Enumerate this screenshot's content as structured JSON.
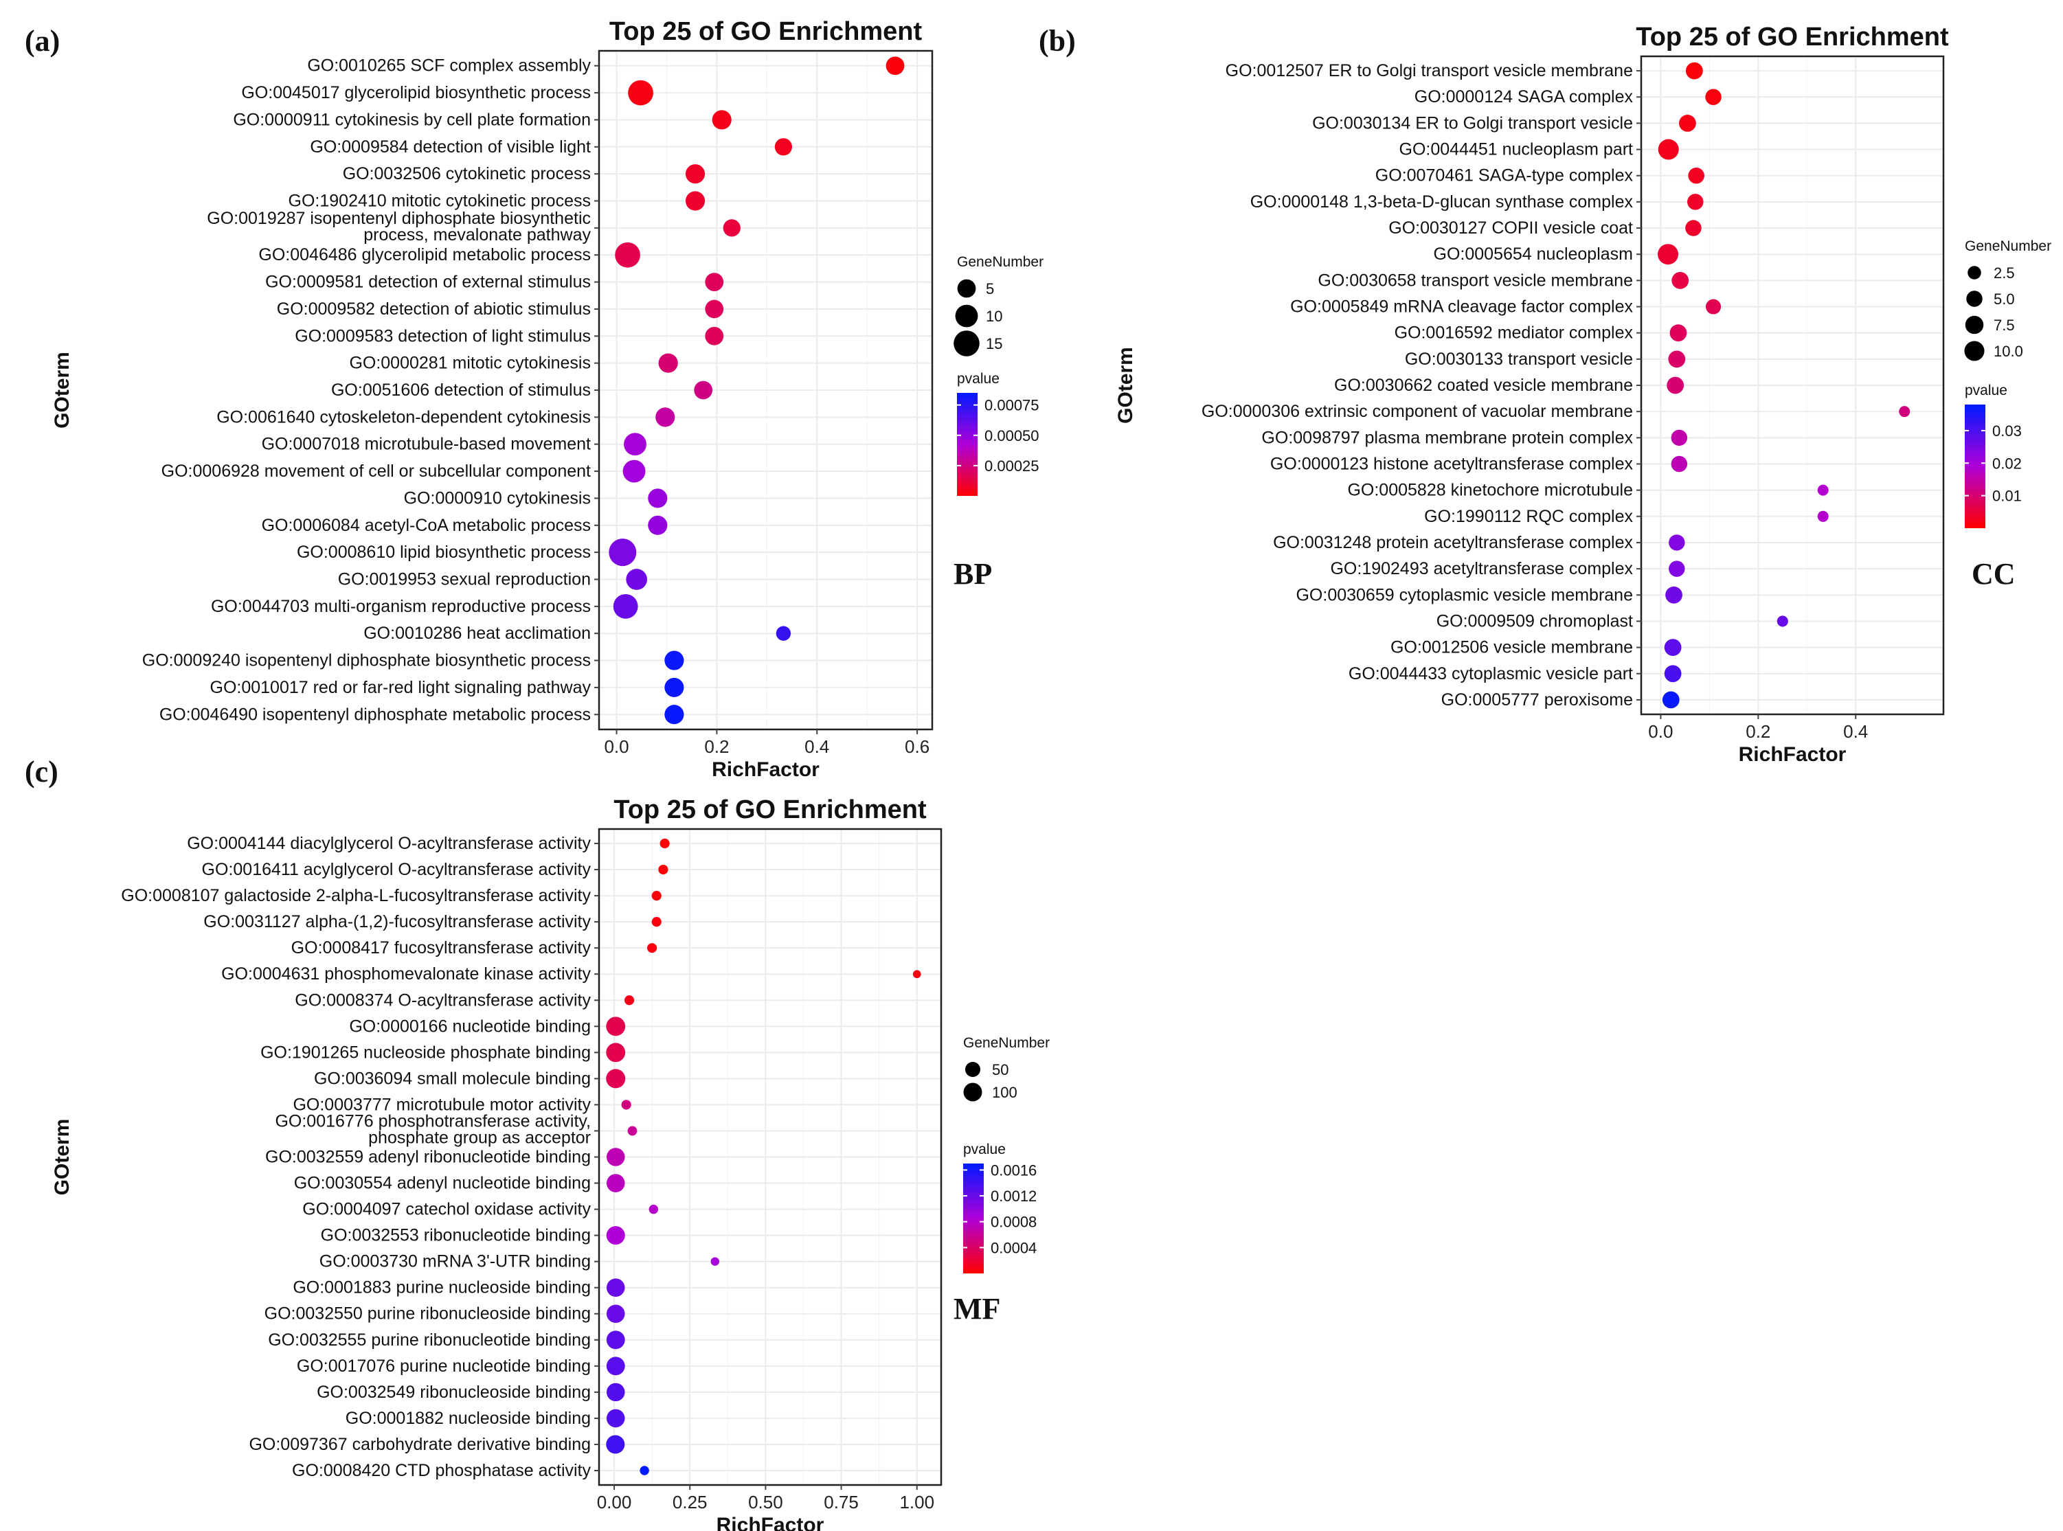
{
  "figure": {
    "description_hidden": ""
  },
  "chart_data": [
    {
      "type": "scatter",
      "panel_letter": "(a)",
      "ontology": "BP",
      "title": "Top 25 of GO Enrichment",
      "xlabel": "RichFactor",
      "ylabel": "GOterm",
      "xlim": [
        -0.035,
        0.63
      ],
      "xticks": [
        0.0,
        0.2,
        0.4,
        0.6
      ],
      "xtick_labels": [
        "0.0",
        "0.2",
        "0.4",
        "0.6"
      ],
      "size_legend": {
        "title": "GeneNumber",
        "values": [
          5,
          10,
          15
        ],
        "labels": [
          "5",
          "10",
          "15"
        ]
      },
      "color_legend": {
        "title": "pvalue",
        "min": 0.0,
        "max": 0.00085,
        "ticks": [
          0.00025,
          0.0005,
          0.00075
        ],
        "labels": [
          "0.00025",
          "0.00050",
          "0.00075"
        ]
      },
      "terms": [
        {
          "label": "GO:0010265 SCF complex assembly",
          "rich": 0.556,
          "genes": 5,
          "pvalue": 2e-05
        },
        {
          "label": "GO:0045017 glycerolipid biosynthetic process",
          "rich": 0.048,
          "genes": 14,
          "pvalue": 4e-05
        },
        {
          "label": "GO:0000911 cytokinesis by cell plate formation",
          "rich": 0.21,
          "genes": 6,
          "pvalue": 5e-05
        },
        {
          "label": "GO:0009584 detection of visible light",
          "rich": 0.333,
          "genes": 4,
          "pvalue": 6e-05
        },
        {
          "label": "GO:0032506 cytokinetic process",
          "rich": 0.157,
          "genes": 6,
          "pvalue": 8e-05
        },
        {
          "label": "GO:1902410 mitotic cytokinetic process",
          "rich": 0.157,
          "genes": 6,
          "pvalue": 9e-05
        },
        {
          "label": "GO:0019287 isopentenyl diphosphate biosynthetic process, mevalonate pathway",
          "label_lines": [
            "GO:0019287 isopentenyl diphosphate biosynthetic",
            "process, mevalonate pathway"
          ],
          "rich": 0.23,
          "genes": 4,
          "pvalue": 0.00012
        },
        {
          "label": "GO:0046486 glycerolipid metabolic process",
          "rich": 0.022,
          "genes": 14,
          "pvalue": 0.00015
        },
        {
          "label": "GO:0009581 detection of external stimulus",
          "rich": 0.195,
          "genes": 5,
          "pvalue": 0.00018
        },
        {
          "label": "GO:0009582 detection of abiotic stimulus",
          "rich": 0.195,
          "genes": 5,
          "pvalue": 0.00018
        },
        {
          "label": "GO:0009583 detection of light stimulus",
          "rich": 0.195,
          "genes": 5,
          "pvalue": 0.00018
        },
        {
          "label": "GO:0000281 mitotic cytokinesis",
          "rich": 0.103,
          "genes": 6,
          "pvalue": 0.00022
        },
        {
          "label": "GO:0051606 detection of stimulus",
          "rich": 0.173,
          "genes": 5,
          "pvalue": 0.00026
        },
        {
          "label": "GO:0061640 cytoskeleton-dependent cytokinesis",
          "rich": 0.097,
          "genes": 6,
          "pvalue": 0.00032
        },
        {
          "label": "GO:0007018 microtubule-based movement",
          "rich": 0.037,
          "genes": 10,
          "pvalue": 0.00045
        },
        {
          "label": "GO:0006928 movement of cell or subcellular component",
          "rich": 0.035,
          "genes": 10,
          "pvalue": 0.00046
        },
        {
          "label": "GO:0000910 cytokinesis",
          "rich": 0.082,
          "genes": 6,
          "pvalue": 0.00048
        },
        {
          "label": "GO:0006084 acetyl-CoA metabolic process",
          "rich": 0.082,
          "genes": 6,
          "pvalue": 0.00049
        },
        {
          "label": "GO:0008610 lipid biosynthetic process",
          "rich": 0.012,
          "genes": 18,
          "pvalue": 0.00055
        },
        {
          "label": "GO:0019953 sexual reproduction",
          "rich": 0.04,
          "genes": 8,
          "pvalue": 0.00058
        },
        {
          "label": "GO:0044703 multi-organism reproductive process",
          "rich": 0.018,
          "genes": 13,
          "pvalue": 0.0006
        },
        {
          "label": "GO:0010286 heat acclimation",
          "rich": 0.333,
          "genes": 2,
          "pvalue": 0.00072
        },
        {
          "label": "GO:0009240 isopentenyl diphosphate biosynthetic process",
          "rich": 0.115,
          "genes": 6,
          "pvalue": 0.00082
        },
        {
          "label": "GO:0010017 red or far-red light signaling pathway",
          "rich": 0.115,
          "genes": 6,
          "pvalue": 0.00082
        },
        {
          "label": "GO:0046490 isopentenyl diphosphate metabolic process",
          "rich": 0.115,
          "genes": 6,
          "pvalue": 0.00083
        }
      ]
    },
    {
      "type": "scatter",
      "panel_letter": "(b)",
      "ontology": "CC",
      "title": "Top 25 of GO Enrichment",
      "xlabel": "RichFactor",
      "ylabel": "GOterm",
      "xlim": [
        -0.04,
        0.58
      ],
      "xticks": [
        0.0,
        0.2,
        0.4
      ],
      "xtick_labels": [
        "0.0",
        "0.2",
        "0.4"
      ],
      "size_legend": {
        "title": "GeneNumber",
        "values": [
          2.5,
          5.0,
          7.5,
          10.0
        ],
        "labels": [
          "2.5",
          "5.0",
          "7.5",
          "10.0"
        ]
      },
      "color_legend": {
        "title": "pvalue",
        "min": 0.0,
        "max": 0.038,
        "ticks": [
          0.01,
          0.02,
          0.03
        ],
        "labels": [
          "0.01",
          "0.02",
          "0.03"
        ]
      },
      "terms": [
        {
          "label": "GO:0012507 ER to Golgi transport vesicle membrane",
          "rich": 0.069,
          "genes": 6,
          "pvalue": 0.0008
        },
        {
          "label": "GO:0000124 SAGA complex",
          "rich": 0.108,
          "genes": 5,
          "pvalue": 0.0012
        },
        {
          "label": "GO:0030134 ER to Golgi transport vesicle",
          "rich": 0.055,
          "genes": 6,
          "pvalue": 0.0018
        },
        {
          "label": "GO:0044451 nucleoplasm part",
          "rich": 0.016,
          "genes": 11,
          "pvalue": 0.0025
        },
        {
          "label": "GO:0070461 SAGA-type complex",
          "rich": 0.073,
          "genes": 5,
          "pvalue": 0.003
        },
        {
          "label": "GO:0000148 1,3-beta-D-glucan synthase complex",
          "rich": 0.071,
          "genes": 5,
          "pvalue": 0.0035
        },
        {
          "label": "GO:0030127 COPII vesicle coat",
          "rich": 0.067,
          "genes": 5,
          "pvalue": 0.004
        },
        {
          "label": "GO:0005654 nucleoplasm",
          "rich": 0.015,
          "genes": 11,
          "pvalue": 0.0045
        },
        {
          "label": "GO:0030658 transport vesicle membrane",
          "rich": 0.04,
          "genes": 6,
          "pvalue": 0.006
        },
        {
          "label": "GO:0005849 mRNA cleavage factor complex",
          "rich": 0.108,
          "genes": 4,
          "pvalue": 0.007
        },
        {
          "label": "GO:0016592 mediator complex",
          "rich": 0.036,
          "genes": 6,
          "pvalue": 0.008
        },
        {
          "label": "GO:0030133 transport vesicle",
          "rich": 0.033,
          "genes": 6,
          "pvalue": 0.009
        },
        {
          "label": "GO:0030662 coated vesicle membrane",
          "rich": 0.03,
          "genes": 6,
          "pvalue": 0.01
        },
        {
          "label": "GO:0000306 extrinsic component of vacuolar membrane",
          "rich": 0.5,
          "genes": 1,
          "pvalue": 0.011
        },
        {
          "label": "GO:0098797 plasma membrane protein complex",
          "rich": 0.038,
          "genes": 5,
          "pvalue": 0.015
        },
        {
          "label": "GO:0000123 histone acetyltransferase complex",
          "rich": 0.038,
          "genes": 5,
          "pvalue": 0.016
        },
        {
          "label": "GO:0005828 kinetochore microtubule",
          "rich": 0.333,
          "genes": 1,
          "pvalue": 0.018
        },
        {
          "label": "GO:1990112 RQC complex",
          "rich": 0.333,
          "genes": 1,
          "pvalue": 0.018
        },
        {
          "label": "GO:0031248 protein acetyltransferase complex",
          "rich": 0.033,
          "genes": 5,
          "pvalue": 0.024
        },
        {
          "label": "GO:1902493 acetyltransferase complex",
          "rich": 0.033,
          "genes": 5,
          "pvalue": 0.024
        },
        {
          "label": "GO:0030659 cytoplasmic vesicle membrane",
          "rich": 0.027,
          "genes": 6,
          "pvalue": 0.026
        },
        {
          "label": "GO:0009509 chromoplast",
          "rich": 0.25,
          "genes": 1,
          "pvalue": 0.027
        },
        {
          "label": "GO:0012506 vesicle membrane",
          "rich": 0.025,
          "genes": 6,
          "pvalue": 0.028
        },
        {
          "label": "GO:0044433 cytoplasmic vesicle part",
          "rich": 0.025,
          "genes": 6,
          "pvalue": 0.03
        },
        {
          "label": "GO:0005777 peroxisome",
          "rich": 0.021,
          "genes": 6,
          "pvalue": 0.037
        }
      ]
    },
    {
      "type": "scatter",
      "panel_letter": "(c)",
      "ontology": "MF",
      "title": "Top 25 of GO Enrichment",
      "xlabel": "RichFactor",
      "ylabel": "GOterm",
      "xlim": [
        -0.05,
        1.08
      ],
      "xticks": [
        0.0,
        0.25,
        0.5,
        0.75,
        1.0
      ],
      "xtick_labels": [
        "0.00",
        "0.25",
        "0.50",
        "0.75",
        "1.00"
      ],
      "size_legend": {
        "title": "GeneNumber",
        "values": [
          50,
          100
        ],
        "labels": [
          "50",
          "100"
        ]
      },
      "color_legend": {
        "title": "pvalue",
        "min": 0.0,
        "max": 0.0017,
        "ticks": [
          0.0004,
          0.0008,
          0.0012,
          0.0016
        ],
        "labels": [
          "0.0004",
          "0.0008",
          "0.0012",
          "0.0016"
        ]
      },
      "terms": [
        {
          "label": "GO:0004144 diacylglycerol O-acyltransferase activity",
          "rich": 0.167,
          "genes": 6,
          "pvalue": 2e-05
        },
        {
          "label": "GO:0016411 acylglycerol O-acyltransferase activity",
          "rich": 0.162,
          "genes": 6,
          "pvalue": 3e-05
        },
        {
          "label": "GO:0008107 galactoside 2-alpha-L-fucosyltransferase activity",
          "rich": 0.14,
          "genes": 6,
          "pvalue": 4e-05
        },
        {
          "label": "GO:0031127 alpha-(1,2)-fucosyltransferase activity",
          "rich": 0.14,
          "genes": 6,
          "pvalue": 5e-05
        },
        {
          "label": "GO:0008417 fucosyltransferase activity",
          "rich": 0.125,
          "genes": 6,
          "pvalue": 6e-05
        },
        {
          "label": "GO:0004631 phosphomevalonate kinase activity",
          "rich": 1.0,
          "genes": 1,
          "pvalue": 8e-05
        },
        {
          "label": "GO:0008374 O-acyltransferase activity",
          "rich": 0.05,
          "genes": 6,
          "pvalue": 0.0001
        },
        {
          "label": "GO:0000166 nucleotide binding",
          "rich": 0.005,
          "genes": 110,
          "pvalue": 0.0003
        },
        {
          "label": "GO:1901265 nucleoside phosphate binding",
          "rich": 0.005,
          "genes": 110,
          "pvalue": 0.0003
        },
        {
          "label": "GO:0036094 small molecule binding",
          "rich": 0.005,
          "genes": 112,
          "pvalue": 0.00032
        },
        {
          "label": "GO:0003777 microtubule motor activity",
          "rich": 0.04,
          "genes": 6,
          "pvalue": 0.0005
        },
        {
          "label": "GO:0016776 phosphotransferase activity, phosphate group as acceptor",
          "label_lines": [
            "GO:0016776 phosphotransferase activity,",
            "phosphate group as acceptor"
          ],
          "rich": 0.06,
          "genes": 5,
          "pvalue": 0.0006
        },
        {
          "label": "GO:0032559 adenyl ribonucleotide binding",
          "rich": 0.005,
          "genes": 95,
          "pvalue": 0.0007
        },
        {
          "label": "GO:0030554 adenyl nucleotide binding",
          "rich": 0.005,
          "genes": 95,
          "pvalue": 0.00075
        },
        {
          "label": "GO:0004097 catechol oxidase activity",
          "rich": 0.13,
          "genes": 4,
          "pvalue": 0.0008
        },
        {
          "label": "GO:0032553 ribonucleotide binding",
          "rich": 0.005,
          "genes": 100,
          "pvalue": 0.00085
        },
        {
          "label": "GO:0003730 mRNA 3'-UTR binding",
          "rich": 0.333,
          "genes": 2,
          "pvalue": 0.0009
        },
        {
          "label": "GO:0001883 purine nucleoside binding",
          "rich": 0.005,
          "genes": 95,
          "pvalue": 0.0012
        },
        {
          "label": "GO:0032550 purine ribonucleoside binding",
          "rich": 0.005,
          "genes": 95,
          "pvalue": 0.0012
        },
        {
          "label": "GO:0032555 purine ribonucleotide binding",
          "rich": 0.005,
          "genes": 98,
          "pvalue": 0.00125
        },
        {
          "label": "GO:0017076 purine nucleotide binding",
          "rich": 0.005,
          "genes": 98,
          "pvalue": 0.00128
        },
        {
          "label": "GO:0032549 ribonucleoside binding",
          "rich": 0.005,
          "genes": 95,
          "pvalue": 0.0013
        },
        {
          "label": "GO:0001882 nucleoside binding",
          "rich": 0.005,
          "genes": 95,
          "pvalue": 0.0013
        },
        {
          "label": "GO:0097367 carbohydrate derivative binding",
          "rich": 0.004,
          "genes": 100,
          "pvalue": 0.0014
        },
        {
          "label": "GO:0008420 CTD phosphatase activity",
          "rich": 0.1,
          "genes": 4,
          "pvalue": 0.0017
        }
      ]
    }
  ]
}
